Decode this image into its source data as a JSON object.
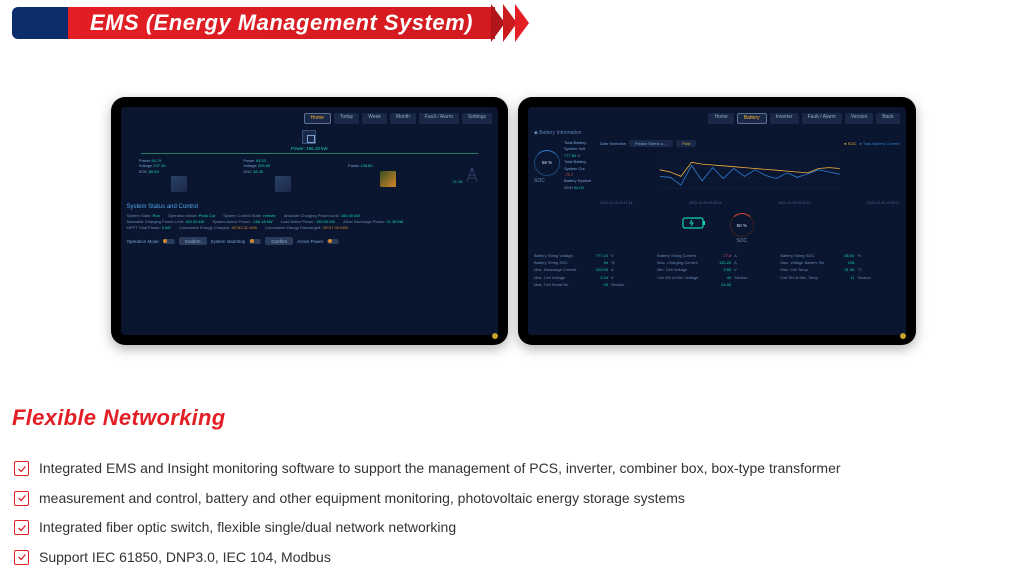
{
  "banner": {
    "title": "EMS (Energy Management System)"
  },
  "section_title": "Flexible Networking",
  "bullets": [
    "Integrated EMS and Insight monitoring software to support the management of  PCS, inverter, combiner box, box-type transformer",
    "measurement and control, battery and other equipment monitoring, photovoltaic energy storage systems",
    " Integrated fiber optic switch, flexible single/dual network networking",
    "Support IEC 61850, DNP3.0, IEC 104, Modbus"
  ],
  "screen1": {
    "tabs": [
      "Home",
      "Today",
      "Week",
      "Month",
      "Fault / Alarm",
      "Settings"
    ],
    "active_tab": 0,
    "power_label": "Power: 196.18 kW",
    "grid_stat": "21.16",
    "blocks": [
      {
        "power": "94.79",
        "volts": "237.10",
        "soc": "89.09"
      },
      {
        "power": "93.20",
        "volts": "229.80",
        "soc": "48.30"
      },
      {
        "power": "138.80"
      }
    ],
    "status_title": "System Status and Control",
    "status": {
      "system_state": "Run",
      "op_mode": "Peak Cut",
      "control_state": "remote",
      "abs_charge_limit": "165.00 kW",
      "allow_charge_limit": "160.00 kW",
      "active_power": "-166.18 kW",
      "local_active": "139.00 kW",
      "allow_discharge": "21.38 kW",
      "mppt_total": "0 kW",
      "cuml_charged": "46763.31 kWh",
      "cuml_discharged": "39747.90 kWh"
    },
    "btn_labels": {
      "op_mode": "Operation Mode",
      "confirm": "Confirm",
      "startstop": "System start/stop",
      "active": "Active Power"
    }
  },
  "screen2": {
    "tabs": [
      "Home",
      "Battery",
      "Inverter",
      "Fault / Alarm",
      "Version",
      "Back"
    ],
    "active_tab": 1,
    "battery_info_title": "Battery Information",
    "soc_percent": "58 %",
    "soc_label": "SOC",
    "summary": {
      "total_v": "777.89",
      "total_i": "-75.7",
      "soh": "94.00",
      "labels": {
        "v": "Total Battery System Volt",
        "i": "Total Battery System Cur",
        "s": "Battery System SOH"
      }
    },
    "chart": {
      "selector_label": "Date Selection",
      "selector_value": "Please Select a ...",
      "find_btn": "Find",
      "legend": {
        "soc": "SOC",
        "cur": "Total Battery Current"
      },
      "soc_color": "#f6b13a",
      "cur_color": "#2d7fd6",
      "ylim": [
        0,
        100
      ],
      "soc_points": [
        55,
        50,
        40,
        72,
        68,
        66,
        64,
        62,
        60,
        58,
        56,
        54,
        52,
        50,
        48,
        58,
        60,
        58
      ],
      "cur_points": [
        40,
        38,
        20,
        65,
        30,
        60,
        35,
        58,
        40,
        55,
        42,
        35,
        48,
        38,
        46,
        55,
        50,
        45
      ],
      "timestamps": [
        "2022-12-16 10:17:14",
        "2022-12-24 09:49:11",
        "2022-12-19 09:42:11",
        "2022-12-19 19:53:11"
      ]
    },
    "soc2_percent": "50 %",
    "soc2_label": "SOC",
    "metrics_cols": [
      [
        {
          "lbl": "Battery String Voltage",
          "v": "777.10",
          "u": "V"
        },
        {
          "lbl": "Battery String SOC",
          "v": "94",
          "u": "%"
        },
        {
          "lbl": "Max. Discharge Current",
          "v": "120.00",
          "u": "A"
        },
        {
          "lbl": "Max. Cell Voltage",
          "v": "3.24",
          "u": "V"
        },
        {
          "lbl": "Max. Cell Serial No.",
          "v": "03",
          "u": "Section"
        }
      ],
      [
        {
          "lbl": "Battery String Current",
          "v": "-77.8",
          "u": "A",
          "red": true
        },
        {
          "lbl": "Max. Charging Current",
          "v": "120.20",
          "u": "A"
        },
        {
          "lbl": "Min. Cell Voltage",
          "v": "3.53",
          "u": "V"
        },
        {
          "lbl": "Cell SN of Min. Voltage",
          "v": "42",
          "u": "Section"
        },
        {
          "lbl": "",
          "v": "24.00",
          "u": ""
        }
      ],
      [
        {
          "lbl": "Battery String SOC",
          "v": "58.00",
          "u": "%"
        },
        {
          "lbl": "Max. Voltage Battery SN",
          "v": "108",
          "u": ""
        },
        {
          "lbl": "Max. Cell Temp",
          "v": "31.00",
          "u": "°C"
        },
        {
          "lbl": "Cell SN of Min. Temp",
          "v": "11",
          "u": "Section"
        }
      ]
    ]
  },
  "colors": {
    "red": "#e31e24",
    "dark_blue": "#0c2d6b",
    "panel_bg": "#0a1530",
    "accent_teal": "#15d4af",
    "accent_orange": "#f6b13a"
  }
}
